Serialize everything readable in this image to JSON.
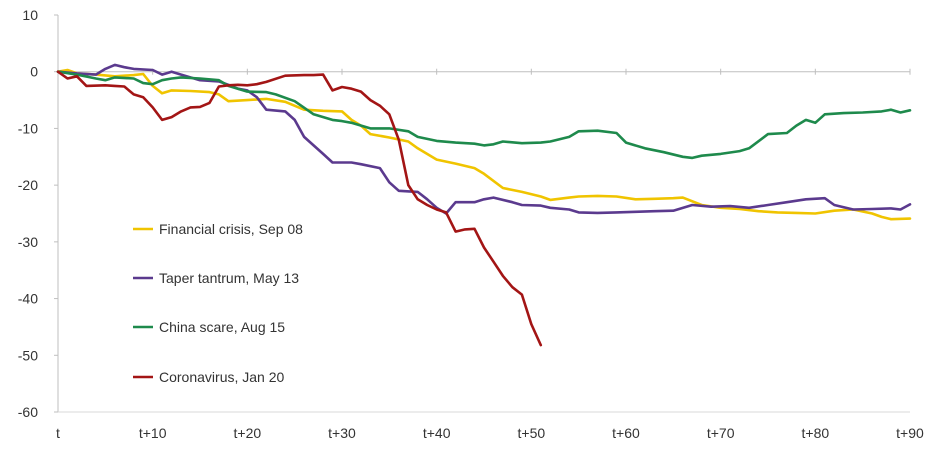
{
  "chart_data": {
    "type": "line",
    "title": "",
    "xlabel": "",
    "ylabel": "",
    "xlim": [
      0,
      90
    ],
    "ylim": [
      -60,
      10
    ],
    "x_tick_values": [
      0,
      10,
      20,
      30,
      40,
      50,
      60,
      70,
      80,
      90
    ],
    "x_tick_labels": [
      "t",
      "t+10",
      "t+20",
      "t+30",
      "t+40",
      "t+50",
      "t+60",
      "t+70",
      "t+80",
      "t+90"
    ],
    "y_ticks": [
      10,
      0,
      -10,
      -20,
      -30,
      -40,
      -50,
      -60
    ],
    "y_tick_labels": [
      "10",
      "0",
      "-10",
      "-20",
      "-30",
      "-40",
      "-50",
      "-60"
    ],
    "grid": false,
    "legend_position": "left",
    "series": [
      {
        "name": "Financial crisis,  Sep 08",
        "color": "#F0C400",
        "points": [
          [
            0,
            0
          ],
          [
            1,
            0.3
          ],
          [
            2,
            -0.3
          ],
          [
            4,
            -0.5
          ],
          [
            6,
            -0.8
          ],
          [
            8,
            -0.6
          ],
          [
            9,
            -0.4
          ],
          [
            10,
            -2.5
          ],
          [
            11,
            -3.8
          ],
          [
            12,
            -3.3
          ],
          [
            14,
            -3.4
          ],
          [
            16,
            -3.6
          ],
          [
            17,
            -4
          ],
          [
            18,
            -5.2
          ],
          [
            20,
            -5
          ],
          [
            22,
            -4.8
          ],
          [
            24,
            -5.3
          ],
          [
            26,
            -6.7
          ],
          [
            28,
            -6.9
          ],
          [
            30,
            -7
          ],
          [
            31,
            -8.5
          ],
          [
            32,
            -9.5
          ],
          [
            33,
            -11
          ],
          [
            35,
            -11.6
          ],
          [
            37,
            -12.3
          ],
          [
            38,
            -13.5
          ],
          [
            40,
            -15.5
          ],
          [
            42,
            -16.2
          ],
          [
            44,
            -17
          ],
          [
            45,
            -18
          ],
          [
            47,
            -20.5
          ],
          [
            49,
            -21.2
          ],
          [
            51,
            -22
          ],
          [
            52,
            -22.6
          ],
          [
            54,
            -22.2
          ],
          [
            55,
            -22
          ],
          [
            57,
            -21.9
          ],
          [
            59,
            -22
          ],
          [
            61,
            -22.5
          ],
          [
            63,
            -22.4
          ],
          [
            65,
            -22.3
          ],
          [
            66,
            -22.2
          ],
          [
            68,
            -23.5
          ],
          [
            70,
            -24
          ],
          [
            72,
            -24.2
          ],
          [
            74,
            -24.6
          ],
          [
            76,
            -24.8
          ],
          [
            78,
            -24.9
          ],
          [
            80,
            -25
          ],
          [
            82,
            -24.5
          ],
          [
            84,
            -24.3
          ],
          [
            86,
            -25
          ],
          [
            87,
            -25.6
          ],
          [
            88,
            -26
          ],
          [
            90,
            -25.9
          ]
        ]
      },
      {
        "name": "Taper tantrum, May 13",
        "color": "#5B3A8E",
        "points": [
          [
            0,
            0
          ],
          [
            2,
            -0.3
          ],
          [
            4,
            -0.5
          ],
          [
            5,
            0.5
          ],
          [
            6,
            1.2
          ],
          [
            7,
            0.8
          ],
          [
            8,
            0.5
          ],
          [
            10,
            0.3
          ],
          [
            11,
            -0.5
          ],
          [
            12,
            0
          ],
          [
            13,
            -0.5
          ],
          [
            15,
            -1.5
          ],
          [
            17,
            -1.7
          ],
          [
            18,
            -2.3
          ],
          [
            19,
            -3
          ],
          [
            20,
            -3.3
          ],
          [
            21,
            -4.5
          ],
          [
            22,
            -6.7
          ],
          [
            24,
            -7
          ],
          [
            25,
            -8.5
          ],
          [
            26,
            -11.5
          ],
          [
            28,
            -14.5
          ],
          [
            29,
            -16
          ],
          [
            31,
            -16
          ],
          [
            32,
            -16.3
          ],
          [
            34,
            -17
          ],
          [
            35,
            -19.5
          ],
          [
            36,
            -21
          ],
          [
            38,
            -21.2
          ],
          [
            39,
            -22.5
          ],
          [
            40,
            -24
          ],
          [
            41,
            -25
          ],
          [
            42,
            -23
          ],
          [
            44,
            -23
          ],
          [
            45,
            -22.5
          ],
          [
            46,
            -22.2
          ],
          [
            48,
            -23
          ],
          [
            49,
            -23.5
          ],
          [
            51,
            -23.6
          ],
          [
            52,
            -24
          ],
          [
            54,
            -24.3
          ],
          [
            55,
            -24.8
          ],
          [
            57,
            -24.9
          ],
          [
            59,
            -24.8
          ],
          [
            61,
            -24.7
          ],
          [
            63,
            -24.6
          ],
          [
            65,
            -24.5
          ],
          [
            67,
            -23.5
          ],
          [
            69,
            -23.8
          ],
          [
            71,
            -23.7
          ],
          [
            73,
            -24
          ],
          [
            75,
            -23.5
          ],
          [
            77,
            -23
          ],
          [
            79,
            -22.5
          ],
          [
            81,
            -22.3
          ],
          [
            82,
            -23.5
          ],
          [
            84,
            -24.3
          ],
          [
            86,
            -24.2
          ],
          [
            88,
            -24.1
          ],
          [
            89,
            -24.3
          ],
          [
            90,
            -23.4
          ]
        ]
      },
      {
        "name": "China scare, Aug 15",
        "color": "#1E8A4C",
        "points": [
          [
            0,
            0
          ],
          [
            2,
            -0.5
          ],
          [
            4,
            -1.2
          ],
          [
            5,
            -1.5
          ],
          [
            6,
            -1
          ],
          [
            8,
            -1.2
          ],
          [
            9,
            -2
          ],
          [
            10,
            -2.2
          ],
          [
            11,
            -1.5
          ],
          [
            12,
            -1.2
          ],
          [
            13,
            -1
          ],
          [
            15,
            -1.2
          ],
          [
            17,
            -1.5
          ],
          [
            18,
            -2.5
          ],
          [
            20,
            -3.5
          ],
          [
            22,
            -3.6
          ],
          [
            23,
            -4
          ],
          [
            25,
            -5.2
          ],
          [
            27,
            -7.5
          ],
          [
            29,
            -8.5
          ],
          [
            30,
            -8.7
          ],
          [
            31,
            -9
          ],
          [
            33,
            -10
          ],
          [
            35,
            -10
          ],
          [
            37,
            -10.5
          ],
          [
            38,
            -11.5
          ],
          [
            40,
            -12.2
          ],
          [
            42,
            -12.5
          ],
          [
            44,
            -12.7
          ],
          [
            45,
            -13
          ],
          [
            46,
            -12.8
          ],
          [
            47,
            -12.3
          ],
          [
            49,
            -12.6
          ],
          [
            51,
            -12.5
          ],
          [
            52,
            -12.3
          ],
          [
            54,
            -11.5
          ],
          [
            55,
            -10.5
          ],
          [
            57,
            -10.4
          ],
          [
            59,
            -10.8
          ],
          [
            60,
            -12.5
          ],
          [
            62,
            -13.5
          ],
          [
            64,
            -14.2
          ],
          [
            66,
            -15
          ],
          [
            67,
            -15.2
          ],
          [
            68,
            -14.8
          ],
          [
            70,
            -14.5
          ],
          [
            72,
            -14
          ],
          [
            73,
            -13.5
          ],
          [
            75,
            -11
          ],
          [
            77,
            -10.8
          ],
          [
            78,
            -9.5
          ],
          [
            79,
            -8.5
          ],
          [
            80,
            -9
          ],
          [
            81,
            -7.5
          ],
          [
            83,
            -7.3
          ],
          [
            85,
            -7.2
          ],
          [
            87,
            -7
          ],
          [
            88,
            -6.7
          ],
          [
            89,
            -7.2
          ],
          [
            90,
            -6.8
          ]
        ]
      },
      {
        "name": "Coronavirus, Jan 20",
        "color": "#A31515",
        "points": [
          [
            0,
            0
          ],
          [
            1,
            -1.2
          ],
          [
            2,
            -0.8
          ],
          [
            3,
            -2.5
          ],
          [
            5,
            -2.4
          ],
          [
            6,
            -2.5
          ],
          [
            7,
            -2.6
          ],
          [
            8,
            -4
          ],
          [
            9,
            -4.5
          ],
          [
            10,
            -6.3
          ],
          [
            11,
            -8.5
          ],
          [
            12,
            -8
          ],
          [
            13,
            -7
          ],
          [
            14,
            -6.3
          ],
          [
            15,
            -6.2
          ],
          [
            16,
            -5.5
          ],
          [
            17,
            -2.6
          ],
          [
            18,
            -2.4
          ],
          [
            19,
            -2.3
          ],
          [
            20,
            -2.4
          ],
          [
            21,
            -2.2
          ],
          [
            22,
            -1.8
          ],
          [
            24,
            -0.7
          ],
          [
            26,
            -0.6
          ],
          [
            27,
            -0.6
          ],
          [
            28,
            -0.5
          ],
          [
            29,
            -3.3
          ],
          [
            30,
            -2.7
          ],
          [
            31,
            -3
          ],
          [
            32,
            -3.5
          ],
          [
            33,
            -5
          ],
          [
            34,
            -6
          ],
          [
            35,
            -7.5
          ],
          [
            36,
            -12
          ],
          [
            37,
            -20
          ],
          [
            38,
            -22.5
          ],
          [
            39,
            -23.5
          ],
          [
            40,
            -24.3
          ],
          [
            41,
            -24.8
          ],
          [
            42,
            -28.2
          ],
          [
            43,
            -27.8
          ],
          [
            44,
            -27.7
          ],
          [
            45,
            -31
          ],
          [
            46,
            -33.5
          ],
          [
            47,
            -36
          ],
          [
            48,
            -38
          ],
          [
            49,
            -39.3
          ],
          [
            50,
            -44.5
          ],
          [
            51,
            -48.2
          ]
        ]
      }
    ]
  }
}
